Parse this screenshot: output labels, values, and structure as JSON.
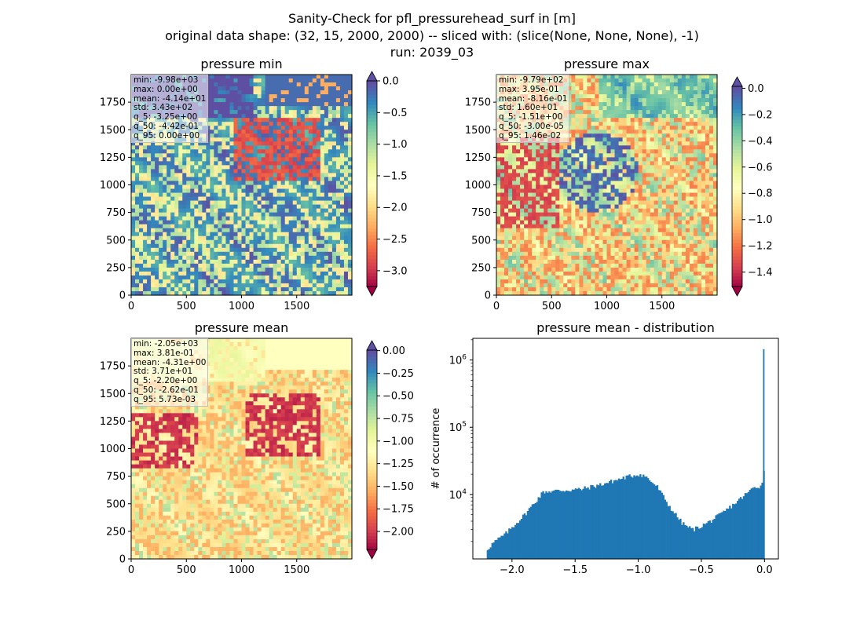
{
  "figure": {
    "title_line1": "Sanity-Check for pfl_pressurehead_surf in [m]",
    "title_line2": "original data shape: (32, 15, 2000, 2000) -- sliced with: (slice(None, None, None), -1)",
    "title_line3": "run: 2039_03"
  },
  "chart_data": [
    {
      "type": "heatmap",
      "title": "pressure min",
      "colormap": "Spectral",
      "xlim": [
        0,
        2000
      ],
      "ylim": [
        0,
        2000
      ],
      "x_ticks": [
        "0",
        "500",
        "1000",
        "1500"
      ],
      "y_ticks": [
        "0",
        "250",
        "500",
        "750",
        "1000",
        "1250",
        "1500",
        "1750"
      ],
      "colorbar": {
        "range": [
          -3.25,
          0.0
        ],
        "extend": "both",
        "ticks": [
          "0.0",
          "−0.5",
          "−1.0",
          "−1.5",
          "−2.0",
          "−2.5",
          "−3.0"
        ],
        "tick_values": [
          0.0,
          -0.5,
          -1.0,
          -1.5,
          -2.0,
          -2.5,
          -3.0
        ]
      },
      "stats": [
        "min: -9.98e+03",
        "max: 0.00e+00",
        "mean: -4.14e+01",
        "std: 3.43e+02",
        "q_5: -3.25e+00",
        "q_50: -4.42e-01",
        "q_95: 0.00e+00"
      ]
    },
    {
      "type": "heatmap",
      "title": "pressure max",
      "colormap": "Spectral",
      "xlim": [
        0,
        2000
      ],
      "ylim": [
        0,
        2000
      ],
      "x_ticks": [
        "0",
        "500",
        "1000",
        "1500"
      ],
      "y_ticks": [
        "0",
        "250",
        "500",
        "750",
        "1000",
        "1250",
        "1500",
        "1750"
      ],
      "colorbar": {
        "range": [
          -1.51,
          0.0146
        ],
        "extend": "both",
        "ticks": [
          "0.0",
          "−0.2",
          "−0.4",
          "−0.6",
          "−0.8",
          "−1.0",
          "−1.2",
          "−1.4"
        ],
        "tick_values": [
          0.0,
          -0.2,
          -0.4,
          -0.6,
          -0.8,
          -1.0,
          -1.2,
          -1.4
        ]
      },
      "stats": [
        "min: -9.79e+02",
        "max: 3.95e-01",
        "mean: -8.16e-01",
        "std: 1.60e+01",
        "q_5: -1.51e+00",
        "q_50: -3.00e-05",
        "q_95: 1.46e-02"
      ]
    },
    {
      "type": "heatmap",
      "title": "pressure mean",
      "colormap": "Spectral",
      "xlim": [
        0,
        2000
      ],
      "ylim": [
        0,
        2000
      ],
      "x_ticks": [
        "0",
        "500",
        "1000",
        "1500"
      ],
      "y_ticks": [
        "0",
        "250",
        "500",
        "750",
        "1000",
        "1250",
        "1500",
        "1750"
      ],
      "colorbar": {
        "range": [
          -2.2,
          0.00573
        ],
        "extend": "both",
        "ticks": [
          "0.00",
          "−0.25",
          "−0.50",
          "−0.75",
          "−1.00",
          "−1.25",
          "−1.50",
          "−1.75",
          "−2.00"
        ],
        "tick_values": [
          0.0,
          -0.25,
          -0.5,
          -0.75,
          -1.0,
          -1.25,
          -1.5,
          -1.75,
          -2.0
        ]
      },
      "stats": [
        "min: -2.05e+03",
        "max: 3.81e-01",
        "mean: -4.31e+00",
        "std: 3.71e+01",
        "q_5: -2.20e+00",
        "q_50: -2.62e-01",
        "q_95: 5.73e-03"
      ]
    },
    {
      "type": "bar",
      "subtype": "histogram",
      "title": "pressure mean - distribution",
      "ylabel": "# of occurrence",
      "y_scale": "log",
      "xlim": [
        -2.31,
        0.11
      ],
      "ylim": [
        1100,
        2100000
      ],
      "x_ticks": [
        "−2.0",
        "−1.5",
        "−1.0",
        "−0.5",
        "0.0"
      ],
      "x_tick_values": [
        -2.0,
        -1.5,
        -1.0,
        -0.5,
        0.0
      ],
      "y_ticks": [
        "10^4",
        "10^5",
        "10^6"
      ],
      "y_tick_values": [
        10000,
        100000,
        1000000
      ],
      "bar_color": "#1f77b4",
      "bins": [
        -2.2,
        0.0
      ],
      "profile_x": [
        -2.2,
        -2.15,
        -2.05,
        -1.9,
        -1.75,
        -1.6,
        -1.45,
        -1.3,
        -1.1,
        -1.0,
        -0.95,
        -0.85,
        -0.75,
        -0.65,
        -0.57,
        -0.53,
        -0.45,
        -0.35,
        -0.25,
        -0.15,
        -0.08,
        -0.02,
        -0.005
      ],
      "profile_y": [
        1500,
        1900,
        2600,
        5000,
        11000,
        11500,
        12000,
        14000,
        18000,
        20000,
        19000,
        13000,
        6500,
        3700,
        3000,
        3200,
        3800,
        5000,
        7000,
        10000,
        13000,
        13500,
        25000
      ],
      "spike": {
        "x": 0.0,
        "y": 1450000
      }
    }
  ]
}
